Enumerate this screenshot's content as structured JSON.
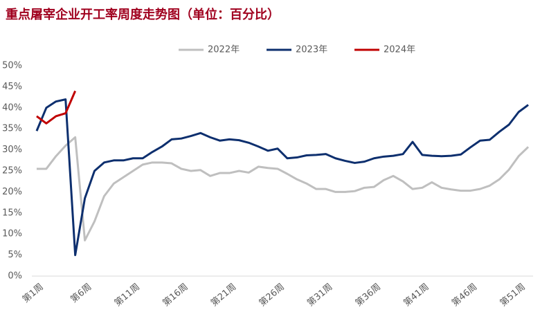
{
  "chart_data": {
    "type": "line",
    "title": "重点屠宰企业开工率周度走势图（单位：百分比）",
    "categories": [
      "第1周",
      null,
      null,
      null,
      null,
      "第6周",
      null,
      null,
      null,
      null,
      "第11周",
      null,
      null,
      null,
      null,
      "第16周",
      null,
      null,
      null,
      null,
      "第21周",
      null,
      null,
      null,
      null,
      "第26周",
      null,
      null,
      null,
      null,
      "第31周",
      null,
      null,
      null,
      null,
      "第36周",
      null,
      null,
      null,
      null,
      "第41周",
      null,
      null,
      null,
      null,
      "第46周",
      null,
      null,
      null,
      null,
      "第51周",
      null
    ],
    "series": [
      {
        "name": "2022年",
        "color": "#bfbfbf",
        "values": [
          25.5,
          25.5,
          28.5,
          31,
          33,
          8.5,
          13,
          19,
          22,
          23.5,
          25,
          26.5,
          27,
          27,
          26.8,
          25.5,
          25,
          25.2,
          23.8,
          24.5,
          24.5,
          25,
          24.6,
          26,
          25.7,
          25.5,
          24.3,
          23,
          22,
          20.7,
          20.7,
          20,
          20,
          20.2,
          21,
          21.2,
          22.8,
          23.8,
          22.5,
          20.7,
          21,
          22.3,
          21,
          20.6,
          20.3,
          20.3,
          20.7,
          21.5,
          23,
          25.3,
          28.5,
          30.7
        ]
      },
      {
        "name": "2023年",
        "color": "#0d2f6e",
        "values": [
          34.5,
          40,
          41.5,
          42,
          5,
          18.5,
          25,
          27,
          27.5,
          27.5,
          28,
          28,
          29.5,
          30.8,
          32.5,
          32.7,
          33.3,
          34,
          33,
          32.2,
          32.5,
          32.3,
          31.7,
          30.8,
          29.8,
          30.3,
          28,
          28.2,
          28.7,
          28.8,
          29,
          28,
          27.4,
          26.9,
          27.2,
          28,
          28.4,
          28.6,
          29,
          31.9,
          28.8,
          28.6,
          28.5,
          28.6,
          28.9,
          30.6,
          32.2,
          32.4,
          34.3,
          36,
          39,
          40.7
        ]
      },
      {
        "name": "2024年",
        "color": "#c00000",
        "values": [
          38,
          36.3,
          38,
          38.7,
          44,
          null,
          null,
          null,
          null,
          null,
          null,
          null,
          null,
          null,
          null,
          null,
          null,
          null,
          null,
          null,
          null,
          null,
          null,
          null,
          null,
          null,
          null,
          null,
          null,
          null,
          null,
          null,
          null,
          null,
          null,
          null,
          null,
          null,
          null,
          null,
          null,
          null,
          null,
          null,
          null,
          null,
          null,
          null,
          null,
          null,
          null,
          null
        ]
      }
    ],
    "ylim": [
      0,
      50
    ],
    "yticks": [
      {
        "value": 0,
        "label": "0%"
      },
      {
        "value": 5,
        "label": "5%"
      },
      {
        "value": 10,
        "label": "10%"
      },
      {
        "value": 15,
        "label": "15%"
      },
      {
        "value": 20,
        "label": "20%"
      },
      {
        "value": 25,
        "label": "25%"
      },
      {
        "value": 30,
        "label": "30%"
      },
      {
        "value": 35,
        "label": "35%"
      },
      {
        "value": 40,
        "label": "40%"
      },
      {
        "value": 45,
        "label": "45%"
      },
      {
        "value": 50,
        "label": "50%"
      }
    ],
    "legend": "top"
  }
}
